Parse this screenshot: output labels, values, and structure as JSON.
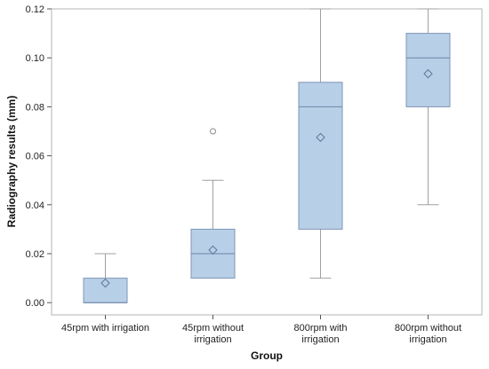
{
  "chart_data": {
    "type": "boxplot",
    "xlabel": "Group",
    "ylabel": "Radiography results (mm)",
    "ylim": [
      -0.005,
      0.12
    ],
    "yticks": [
      "0.00",
      "0.02",
      "0.04",
      "0.06",
      "0.08",
      "0.10",
      "0.12"
    ],
    "categories": [
      [
        "45rpm with irrigation"
      ],
      [
        "45rpm without",
        "irrigation"
      ],
      [
        "800rpm with",
        "irrigation"
      ],
      [
        "800rpm without",
        "irrigation"
      ]
    ],
    "boxes": [
      {
        "whisker_low": 0.0,
        "q1": 0.0,
        "median": 0.0,
        "q3": 0.01,
        "whisker_high": 0.02,
        "mean": 0.008,
        "outliers": []
      },
      {
        "whisker_low": 0.01,
        "q1": 0.01,
        "median": 0.02,
        "q3": 0.03,
        "whisker_high": 0.05,
        "mean": 0.0215,
        "outliers": [
          0.07
        ]
      },
      {
        "whisker_low": 0.01,
        "q1": 0.03,
        "median": 0.08,
        "q3": 0.09,
        "whisker_high": 0.12,
        "mean": 0.0675,
        "outliers": []
      },
      {
        "whisker_low": 0.04,
        "q1": 0.08,
        "median": 0.1,
        "q3": 0.11,
        "whisker_high": 0.12,
        "mean": 0.0935,
        "outliers": []
      }
    ],
    "colors": {
      "box_fill": "#b8cfe8",
      "box_stroke": "#7f95b5",
      "median": "#6d86a8",
      "whisker": "#a0a0a0",
      "mean_marker": "#5f7896",
      "frame": "#b5b5b5"
    }
  }
}
